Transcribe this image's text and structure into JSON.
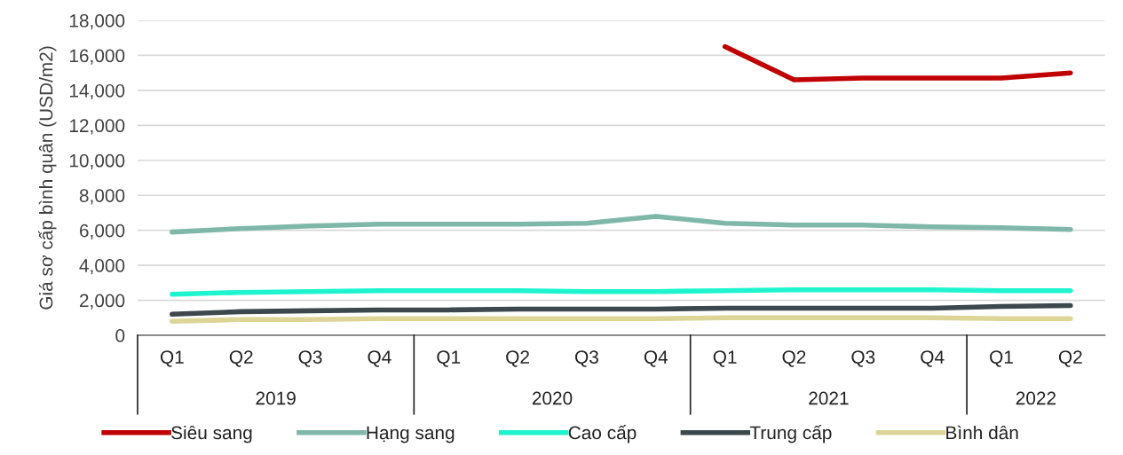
{
  "chart_data": {
    "type": "line",
    "ylabel": "Giá sơ cấp bình quân (USD/m2)",
    "categories": [
      "Q1",
      "Q2",
      "Q3",
      "Q4",
      "Q1",
      "Q2",
      "Q3",
      "Q4",
      "Q1",
      "Q2",
      "Q3",
      "Q4",
      "Q1",
      "Q2"
    ],
    "annotations": [
      "2019",
      "2020",
      "2021",
      "2022"
    ],
    "series": [
      {
        "name": "Siêu sang",
        "color": "#c00000",
        "values": [
          null,
          null,
          null,
          null,
          null,
          null,
          null,
          null,
          16500,
          14600,
          14700,
          14700,
          14700,
          15000
        ]
      },
      {
        "name": "Hạng sang",
        "color": "#7fb8a9",
        "values": [
          5900,
          6100,
          6250,
          6350,
          6350,
          6350,
          6400,
          6800,
          6400,
          6300,
          6300,
          6200,
          6150,
          6050
        ]
      },
      {
        "name": "Cao cấp",
        "color": "#1ef5cf",
        "values": [
          2350,
          2450,
          2500,
          2550,
          2550,
          2550,
          2500,
          2500,
          2550,
          2600,
          2600,
          2600,
          2550,
          2550
        ]
      },
      {
        "name": "Trung cấp",
        "color": "#3d484c",
        "values": [
          1200,
          1350,
          1400,
          1450,
          1450,
          1500,
          1500,
          1500,
          1550,
          1550,
          1550,
          1550,
          1650,
          1700
        ]
      },
      {
        "name": "Bình dân",
        "color": "#ddd597",
        "values": [
          800,
          900,
          900,
          950,
          950,
          950,
          950,
          950,
          1000,
          1000,
          1000,
          1000,
          950,
          950
        ]
      }
    ],
    "ylim": [
      0,
      18000
    ],
    "yticks": [
      {
        "value": 0,
        "label": "0"
      },
      {
        "value": 2000,
        "label": "2,000"
      },
      {
        "value": 4000,
        "label": "4,000"
      },
      {
        "value": 6000,
        "label": "6,000"
      },
      {
        "value": 8000,
        "label": "8,000"
      },
      {
        "value": 10000,
        "label": "10,000"
      },
      {
        "value": 12000,
        "label": "12,000"
      },
      {
        "value": 14000,
        "label": "14,000"
      },
      {
        "value": 16000,
        "label": "16,000"
      },
      {
        "value": 18000,
        "label": "18,000"
      }
    ],
    "grid": "y",
    "legend": "bottom",
    "marker": "none",
    "line_style": "solid"
  }
}
